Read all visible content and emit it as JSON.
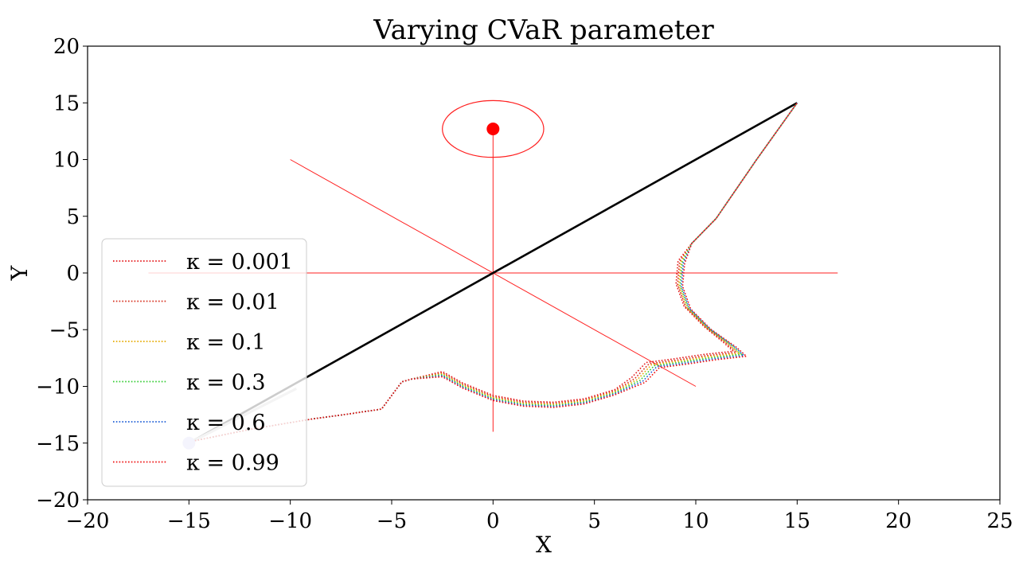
{
  "chart_data": {
    "type": "line",
    "title": "Varying CVaR parameter",
    "xlabel": "X",
    "ylabel": "Y",
    "xlim": [
      -20,
      25
    ],
    "ylim": [
      -20,
      20
    ],
    "xticks": [
      -20,
      -15,
      -10,
      -5,
      0,
      5,
      10,
      15,
      20,
      25
    ],
    "yticks": [
      -20,
      -15,
      -10,
      -5,
      0,
      5,
      10,
      15,
      20
    ],
    "xtick_labels": [
      "−20",
      "−15",
      "−10",
      "−5",
      "0",
      "5",
      "10",
      "15",
      "20",
      "25"
    ],
    "ytick_labels": [
      "−20",
      "−15",
      "−10",
      "−5",
      "0",
      "5",
      "10",
      "15",
      "20"
    ],
    "grid": false,
    "legend_position": "center-left",
    "series": [
      {
        "name": "κ = 0.001",
        "color": "#e41a1c",
        "offset": -0.3
      },
      {
        "name": "κ = 0.01",
        "color": "#d7301f",
        "offset": 0.0
      },
      {
        "name": "κ = 0.1",
        "color": "#e6ab02",
        "offset": 0.25
      },
      {
        "name": "κ = 0.3",
        "color": "#33cc33",
        "offset": 0.5
      },
      {
        "name": "κ = 0.6",
        "color": "#1f5fd6",
        "offset": 0.75
      },
      {
        "name": "κ = 0.99",
        "color": "#ee1111",
        "offset": 1.0
      }
    ],
    "trajectory_base": [
      [
        -15,
        -14.9
      ],
      [
        -12,
        -13.8
      ],
      [
        -9,
        -12.9
      ],
      [
        -7,
        -12.4
      ],
      [
        -5.5,
        -12.0
      ],
      [
        -4.5,
        -9.6
      ],
      [
        -4,
        -9.35
      ],
      [
        -2.5,
        -8.8
      ],
      [
        -1.5,
        -9.8
      ],
      [
        0,
        -10.9
      ],
      [
        1.5,
        -11.4
      ],
      [
        3,
        -11.5
      ],
      [
        4.5,
        -11.2
      ],
      [
        6,
        -10.4
      ],
      [
        7,
        -9.3
      ],
      [
        7.7,
        -8.0
      ],
      [
        9,
        -7.7
      ],
      [
        10.5,
        -7.3
      ],
      [
        12,
        -7.0
      ],
      [
        11.5,
        -6.2
      ],
      [
        10.5,
        -4.8
      ],
      [
        9.5,
        -3.0
      ],
      [
        9.1,
        -1.0
      ],
      [
        9.2,
        1.0
      ],
      [
        9.8,
        2.6
      ],
      [
        11,
        4.8
      ],
      [
        13,
        10.0
      ],
      [
        15,
        15.0
      ]
    ],
    "straight_line": {
      "x": [
        -15,
        15
      ],
      "y": [
        -15,
        15
      ],
      "color": "#000000"
    },
    "faded_line": {
      "x": [
        -15,
        -9.7
      ],
      "y": [
        -15,
        -10.2
      ],
      "color": "#c8c8c8"
    },
    "start_point": {
      "x": -15,
      "y": -15,
      "color": "#c9c9f5"
    },
    "obstacle": {
      "center": {
        "x": 0,
        "y": 12.7
      },
      "rx": 2.5,
      "ry": 2.5,
      "point_color": "#ff0000",
      "line_color": "#ff2020"
    },
    "red_lines": [
      {
        "name": "horizontal",
        "x": [
          -17,
          17
        ],
        "y": [
          0,
          0
        ]
      },
      {
        "name": "vertical",
        "x": [
          0,
          0
        ],
        "y": [
          -14,
          12.7
        ]
      },
      {
        "name": "diagonal",
        "x": [
          -10,
          10
        ],
        "y": [
          10,
          -10
        ]
      }
    ]
  }
}
